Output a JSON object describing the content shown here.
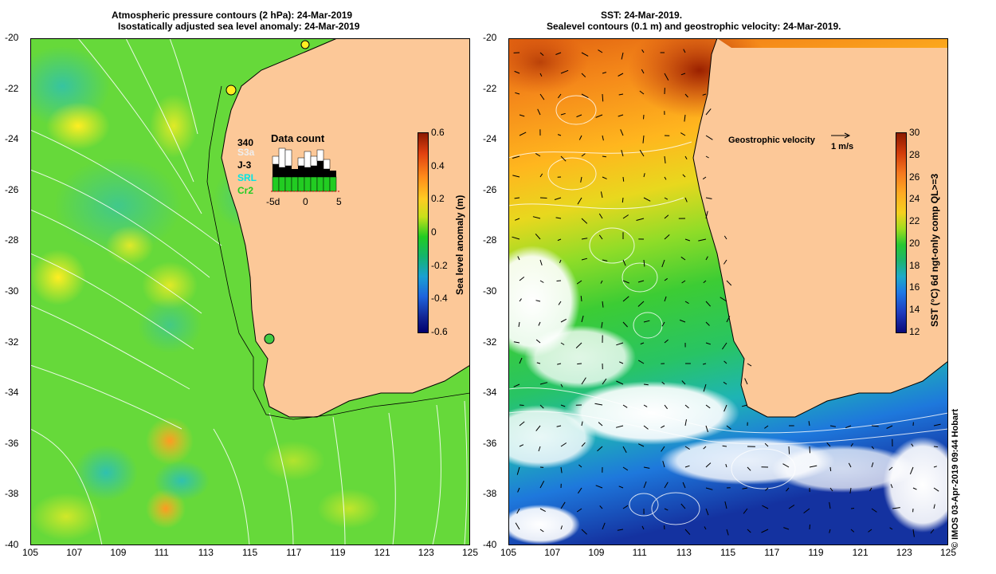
{
  "left_panel": {
    "title_line1": "Atmospheric pressure contours (2 hPa): 24-Mar-2019",
    "title_line2": "Isostatically adjusted sea level anomaly: 24-Mar-2019",
    "colorbar_label": "Sea level anomaly (m)",
    "colorbar_ticks": [
      "0.6",
      "0.4",
      "0.2",
      "0",
      "-0.2",
      "-0.4",
      "-0.6"
    ],
    "data_count": {
      "title": "Data count",
      "total": "340",
      "missions": [
        {
          "name": "S3a",
          "color": "#e8e8e8"
        },
        {
          "name": "J-3",
          "color": "#000000"
        },
        {
          "name": "SRL",
          "color": "#00e5e5"
        },
        {
          "name": "Cr2",
          "color": "#22cc22"
        }
      ],
      "x_ticks": [
        "-5d",
        "0",
        "5"
      ]
    }
  },
  "right_panel": {
    "title_line1": "SST: 24-Mar-2019.",
    "title_line2": "Sealevel contours (0.1 m) and geostrophic velocity: 24-Mar-2019.",
    "velocity_label": "Geostrophic velocity",
    "velocity_scale": "1 m/s",
    "colorbar_label": "SST (°C) 6d ngt-only comp QL>=3",
    "colorbar_ticks": [
      "30",
      "28",
      "26",
      "24",
      "22",
      "20",
      "18",
      "16",
      "14",
      "12"
    ]
  },
  "axes": {
    "x_ticks": [
      "105",
      "107",
      "109",
      "111",
      "113",
      "115",
      "117",
      "119",
      "121",
      "123",
      "125"
    ],
    "y_ticks": [
      "-20",
      "-22",
      "-24",
      "-26",
      "-28",
      "-30",
      "-32",
      "-34",
      "-36",
      "-38",
      "-40"
    ]
  },
  "credit": "© IMOS 03-Apr-2019 09:44 Hobart",
  "colors": {
    "land": "#fcc898",
    "ocean_base": "#33cc33",
    "coast": "#000000"
  }
}
